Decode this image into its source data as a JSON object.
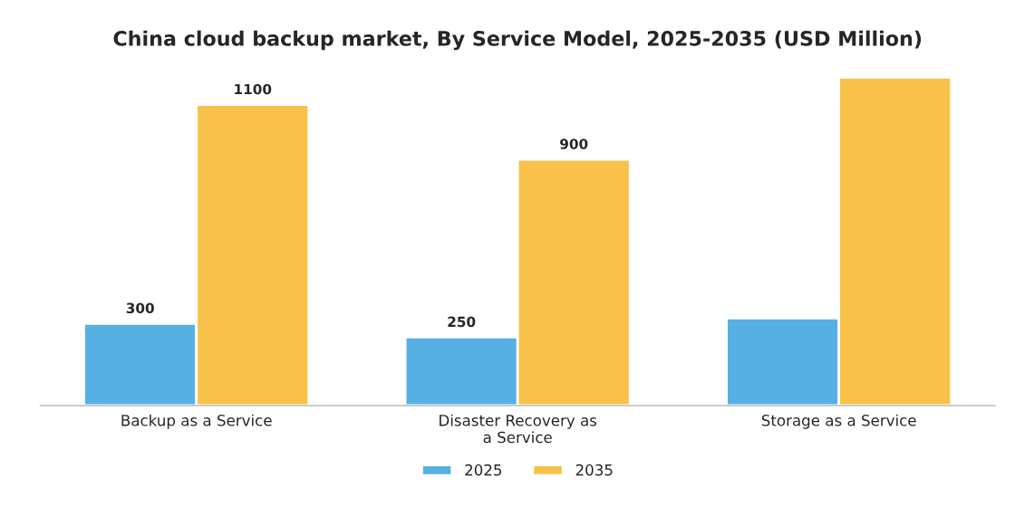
{
  "chart_data": {
    "type": "bar",
    "title": "China cloud backup market, By Service Model, 2025-2035 (USD Million)",
    "categories": [
      "Backup as a Service",
      "Disaster Recovery as\na Service",
      "Storage as a Service"
    ],
    "series": [
      {
        "name": "2025",
        "color": "#56b0e3",
        "values": [
          300,
          250,
          320
        ],
        "value_labels": [
          "300",
          "250",
          null
        ]
      },
      {
        "name": "2035",
        "color": "#f8c24a",
        "values": [
          1100,
          900,
          1200
        ],
        "value_labels": [
          "1100",
          "900",
          null
        ]
      }
    ],
    "legend": "bottom",
    "grid": false
  }
}
